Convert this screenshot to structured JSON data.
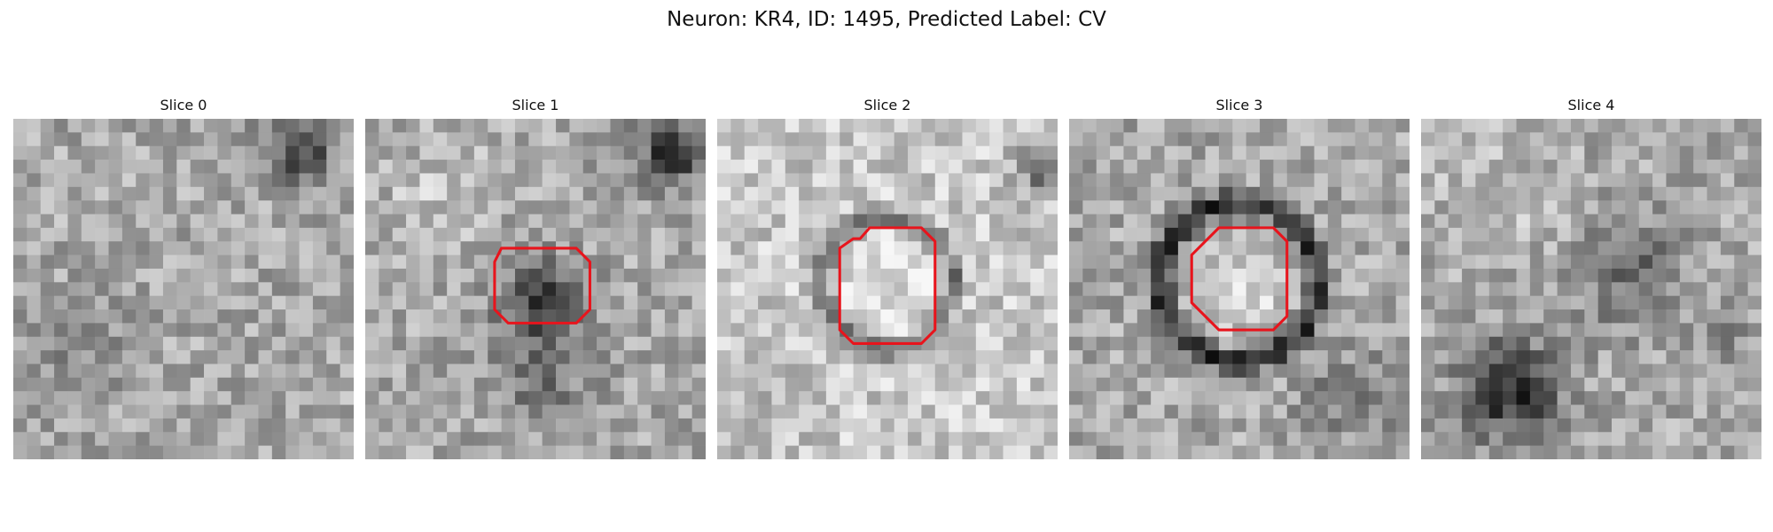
{
  "figure": {
    "title": "Neuron: KR4, ID: 1495, Predicted Label: CV"
  },
  "panels": [
    {
      "title": "Slice 0",
      "contour": []
    },
    {
      "title": "Slice 1",
      "contour": [
        [
          10,
          9.5
        ],
        [
          15.5,
          9.5
        ],
        [
          16.5,
          10.5
        ],
        [
          16.5,
          14
        ],
        [
          15.5,
          15
        ],
        [
          10.5,
          15
        ],
        [
          9.5,
          14
        ],
        [
          9.5,
          10.5
        ]
      ]
    },
    {
      "title": "Slice 2",
      "contour": [
        [
          9,
          9.5
        ],
        [
          10,
          8.8
        ],
        [
          10.5,
          8.8
        ],
        [
          11.2,
          8
        ],
        [
          15,
          8
        ],
        [
          16,
          9
        ],
        [
          16,
          15.5
        ],
        [
          15,
          16.5
        ],
        [
          10,
          16.5
        ],
        [
          9,
          15.5
        ]
      ]
    },
    {
      "title": "Slice 3",
      "contour": [
        [
          11,
          8
        ],
        [
          15,
          8
        ],
        [
          16,
          9
        ],
        [
          16,
          14.5
        ],
        [
          15,
          15.5
        ],
        [
          11,
          15.5
        ],
        [
          9,
          13.5
        ],
        [
          9,
          10
        ]
      ]
    },
    {
      "title": "Slice 4",
      "contour": []
    }
  ],
  "image_grid": {
    "cells": 25
  },
  "colors": {
    "contour": "#e8141c",
    "background": "#ffffff"
  }
}
